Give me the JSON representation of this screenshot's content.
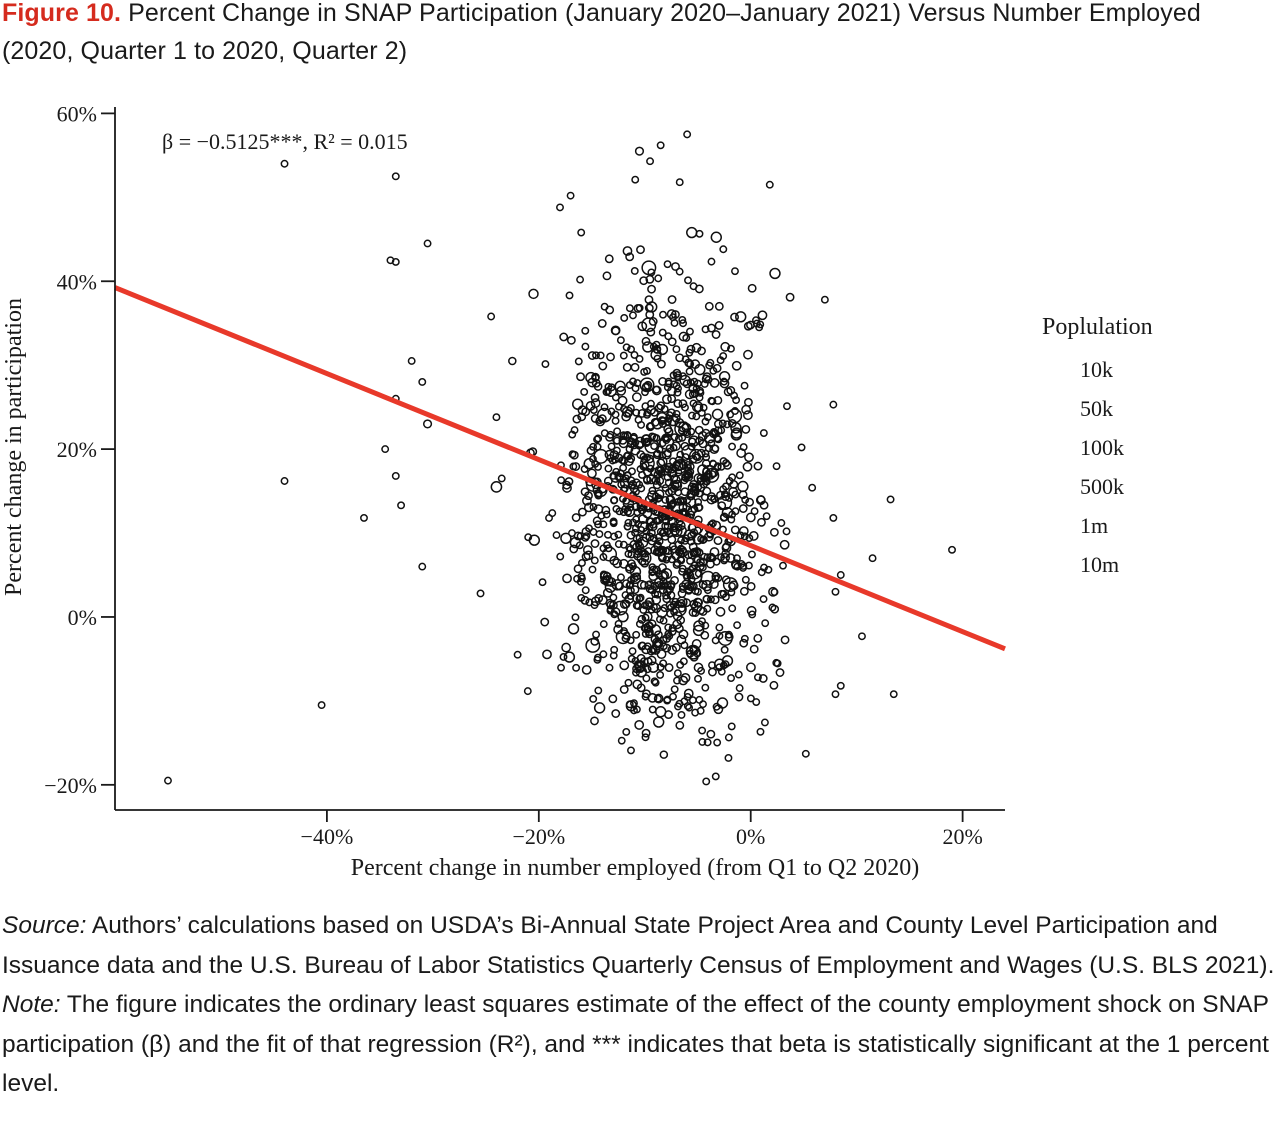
{
  "figure": {
    "label": "Figure 10.",
    "title": "Percent Change in SNAP Participation (January 2020–January 2021) Versus Number Employed (2020, Quarter 1 to 2020, Quarter 2)"
  },
  "chart_data": {
    "type": "scatter",
    "annotation": "β = −0.5125***, R² = 0.015",
    "xlabel": "Percent change in number employed (from Q1 to Q2 2020)",
    "ylabel": "Percent change in participation",
    "xlim": [
      -60,
      24
    ],
    "ylim": [
      -23,
      61
    ],
    "xticks": [
      -40,
      -20,
      0,
      20
    ],
    "xtick_labels": [
      "−40%",
      "−20%",
      "0%",
      "20%"
    ],
    "yticks": [
      60,
      40,
      20,
      0,
      -20
    ],
    "ytick_labels": [
      "60%",
      "40%",
      "20%",
      "0%",
      "−20%"
    ],
    "grid": false,
    "fit_line": {
      "slope": -0.5125,
      "intercept": 8.5,
      "color": "#e8392a"
    },
    "legend": {
      "title": "Poplulation",
      "position": "right",
      "items": [
        {
          "label": "10k",
          "size": 1
        },
        {
          "label": "50k",
          "size": 1.15
        },
        {
          "label": "100k",
          "size": 1.25
        },
        {
          "label": "500k",
          "size": 1.4
        },
        {
          "label": "1m",
          "size": 1.7
        },
        {
          "label": "10m",
          "size": 2.6
        }
      ]
    },
    "outliers": [
      {
        "x": -55,
        "y": -19.5,
        "s": 1
      },
      {
        "x": -44,
        "y": 54,
        "s": 1
      },
      {
        "x": -33.5,
        "y": 52.5,
        "s": 1
      },
      {
        "x": -30.5,
        "y": 44.5,
        "s": 1
      },
      {
        "x": -34,
        "y": 42.5,
        "s": 1
      },
      {
        "x": -33.5,
        "y": 42.3,
        "s": 1
      },
      {
        "x": -32,
        "y": 30.5,
        "s": 1
      },
      {
        "x": -31,
        "y": 28,
        "s": 1
      },
      {
        "x": -33.5,
        "y": 26,
        "s": 1
      },
      {
        "x": -30.5,
        "y": 23,
        "s": 1.2
      },
      {
        "x": -34.5,
        "y": 20,
        "s": 1
      },
      {
        "x": -33.5,
        "y": 16.8,
        "s": 1
      },
      {
        "x": -44,
        "y": 16.2,
        "s": 1
      },
      {
        "x": -33,
        "y": 13.3,
        "s": 1
      },
      {
        "x": -36.5,
        "y": 11.8,
        "s": 1
      },
      {
        "x": -31,
        "y": 6,
        "s": 1
      },
      {
        "x": -40.5,
        "y": -10.5,
        "s": 1
      },
      {
        "x": -25.5,
        "y": 2.8,
        "s": 1
      },
      {
        "x": -24.5,
        "y": 35.8,
        "s": 1
      },
      {
        "x": -22.5,
        "y": 30.5,
        "s": 1.1
      },
      {
        "x": -24,
        "y": 23.8,
        "s": 1
      },
      {
        "x": -23.5,
        "y": 16.5,
        "s": 1
      },
      {
        "x": -24,
        "y": 15.5,
        "s": 1.6
      },
      {
        "x": -22,
        "y": -4.5,
        "s": 1
      },
      {
        "x": -21,
        "y": 9.5,
        "s": 1
      },
      {
        "x": -20.5,
        "y": 38.5,
        "s": 1.4
      },
      {
        "x": 1.8,
        "y": 51.5,
        "s": 1
      },
      {
        "x": 7,
        "y": 37.8,
        "s": 1
      },
      {
        "x": 7.8,
        "y": 25.3,
        "s": 1
      },
      {
        "x": 4.8,
        "y": 20.2,
        "s": 1
      },
      {
        "x": 5.8,
        "y": 15.4,
        "s": 1
      },
      {
        "x": 7.8,
        "y": 11.8,
        "s": 1
      },
      {
        "x": 8.5,
        "y": 5,
        "s": 1
      },
      {
        "x": 8,
        "y": 3,
        "s": 1
      },
      {
        "x": 11.5,
        "y": 7,
        "s": 1
      },
      {
        "x": 10.5,
        "y": -2.3,
        "s": 1
      },
      {
        "x": 8.5,
        "y": -8.2,
        "s": 1
      },
      {
        "x": 8,
        "y": -9.2,
        "s": 1
      },
      {
        "x": 13.5,
        "y": -9.2,
        "s": 1
      },
      {
        "x": 13.2,
        "y": 14,
        "s": 1
      },
      {
        "x": 19,
        "y": 8,
        "s": 1
      },
      {
        "x": 5.2,
        "y": -16.3,
        "s": 1
      },
      {
        "x": -6,
        "y": 57.5,
        "s": 1
      },
      {
        "x": -10.5,
        "y": 55.5,
        "s": 1.2
      },
      {
        "x": -8.5,
        "y": 56.2,
        "s": 1
      },
      {
        "x": -9.5,
        "y": 54.3,
        "s": 1
      },
      {
        "x": -17,
        "y": 50.2,
        "s": 1
      },
      {
        "x": -18,
        "y": 48.8,
        "s": 1
      },
      {
        "x": -16,
        "y": 45.8,
        "s": 1
      },
      {
        "x": -4.2,
        "y": -19.6,
        "s": 1
      },
      {
        "x": -3.3,
        "y": -19.0,
        "s": 1
      },
      {
        "x": -8.2,
        "y": -16.4,
        "s": 1.1
      },
      {
        "x": -11.3,
        "y": -15.9,
        "s": 1
      },
      {
        "x": -2.1,
        "y": -16.8,
        "s": 1
      },
      {
        "x": -10.9,
        "y": 52.1,
        "s": 1
      },
      {
        "x": -6.7,
        "y": 51.8,
        "s": 1
      }
    ],
    "cluster": {
      "count": 1350,
      "x_mean": -8,
      "x_sd": 4.5,
      "y_mean": 13,
      "y_sd": 13,
      "x_clip": [
        -22,
        4
      ],
      "y_clip": [
        -15,
        49
      ],
      "seed": 7
    }
  },
  "footnotes": {
    "source_label": "Source:",
    "source_text": " Authors’ calculations based on USDA’s Bi-Annual State Project Area and County Level Participation and Issuance data and the U.S. Bureau of Labor Statistics Quarterly Census of Employment and Wages (U.S. BLS 2021).",
    "note_label": "Note:",
    "note_text": " The figure indicates the ordinary least squares estimate of the effect of the county employment shock on SNAP participation (β) and the fit of that regression (R²), and *** indicates that beta is statistically significant at the 1 percent level."
  }
}
